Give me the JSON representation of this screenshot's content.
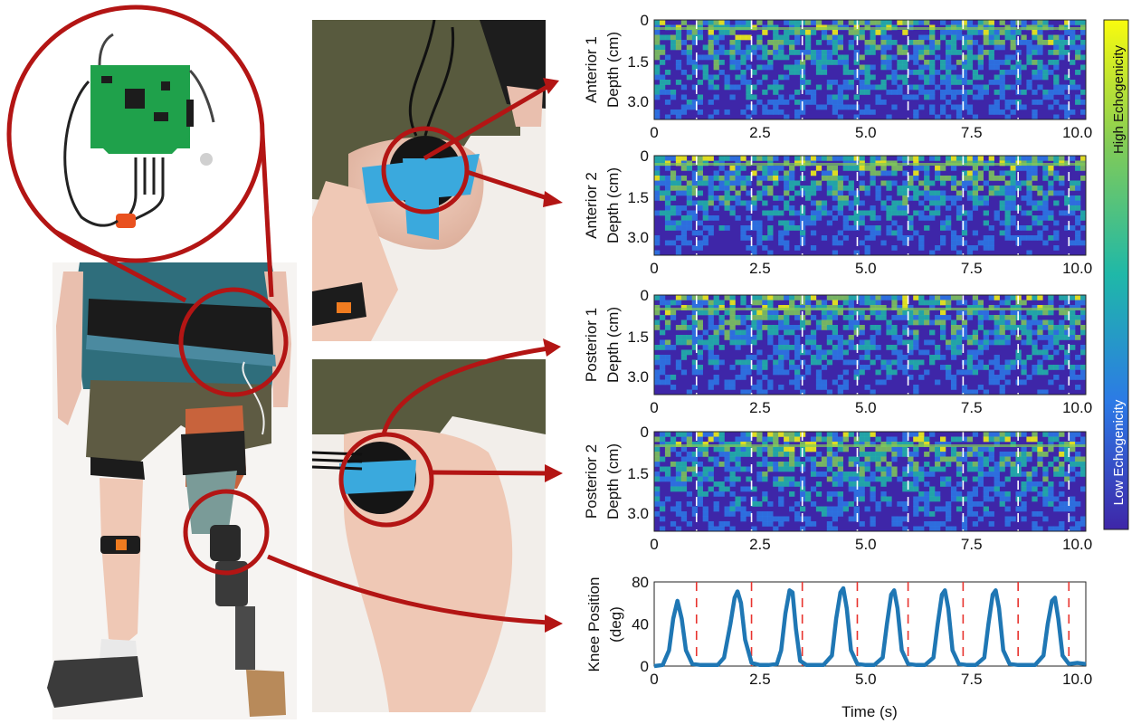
{
  "echo_panels": [
    {
      "line1": "Anterior 1",
      "line2": "Depth (cm)"
    },
    {
      "line1": "Anterior 2",
      "line2": "Depth (cm)"
    },
    {
      "line1": "Posterior 1",
      "line2": "Depth (cm)"
    },
    {
      "line1": "Posterior 2",
      "line2": "Depth (cm)"
    }
  ],
  "depth_ticks": [
    "0",
    "1.5",
    "3.0"
  ],
  "time_ticks": [
    "0",
    "2.5",
    "5.0",
    "7.5",
    "10.0"
  ],
  "colorbar": {
    "high_label": "High Echogenicity",
    "low_label": "Low Echogenicity",
    "colors": [
      "#f9fb0e",
      "#80cb58",
      "#1fb8a8",
      "#2c7ae6",
      "#3e26a8"
    ]
  },
  "chart_data": {
    "type": "line",
    "ylabel_line1": "Knee Position",
    "ylabel_line2": "(deg)",
    "xlabel": "Time (s)",
    "x_ticks": [
      "0",
      "2.5",
      "5.0",
      "7.5",
      "10.0"
    ],
    "y_ticks": [
      "0",
      "40",
      "80"
    ],
    "xlim": [
      0,
      10.2
    ],
    "ylim": [
      0,
      80
    ],
    "series": [
      {
        "color": "#1f77b4",
        "x": [
          0.0,
          0.2,
          0.35,
          0.45,
          0.55,
          0.65,
          0.75,
          0.9,
          1.1,
          1.3,
          1.5,
          1.65,
          1.8,
          1.9,
          1.97,
          2.05,
          2.15,
          2.3,
          2.5,
          2.7,
          2.9,
          3.0,
          3.1,
          3.2,
          3.27,
          3.35,
          3.45,
          3.6,
          3.8,
          4.0,
          4.2,
          4.3,
          4.4,
          4.47,
          4.55,
          4.65,
          4.8,
          5.0,
          5.2,
          5.4,
          5.5,
          5.6,
          5.67,
          5.75,
          5.85,
          6.0,
          6.2,
          6.4,
          6.6,
          6.7,
          6.8,
          6.87,
          6.95,
          7.05,
          7.2,
          7.4,
          7.6,
          7.8,
          7.9,
          8.0,
          8.07,
          8.15,
          8.25,
          8.4,
          8.6,
          8.8,
          9.0,
          9.2,
          9.3,
          9.4,
          9.47,
          9.55,
          9.65,
          9.8,
          10.0,
          10.2
        ],
        "y": [
          0,
          1,
          15,
          45,
          62,
          45,
          15,
          2,
          1,
          1,
          1,
          8,
          40,
          65,
          71,
          60,
          25,
          3,
          1,
          1,
          2,
          15,
          50,
          72,
          70,
          35,
          5,
          1,
          1,
          1,
          10,
          45,
          70,
          74,
          55,
          15,
          2,
          1,
          1,
          8,
          40,
          68,
          72,
          55,
          15,
          2,
          1,
          1,
          8,
          40,
          68,
          72,
          55,
          15,
          2,
          1,
          1,
          8,
          40,
          68,
          72,
          55,
          15,
          2,
          1,
          1,
          1,
          10,
          40,
          62,
          65,
          45,
          10,
          2,
          3,
          2
        ]
      }
    ],
    "cycle_markers": [
      1.0,
      2.3,
      3.5,
      4.8,
      6.0,
      7.3,
      8.6,
      9.8
    ],
    "marker_color": "#e8332e"
  }
}
